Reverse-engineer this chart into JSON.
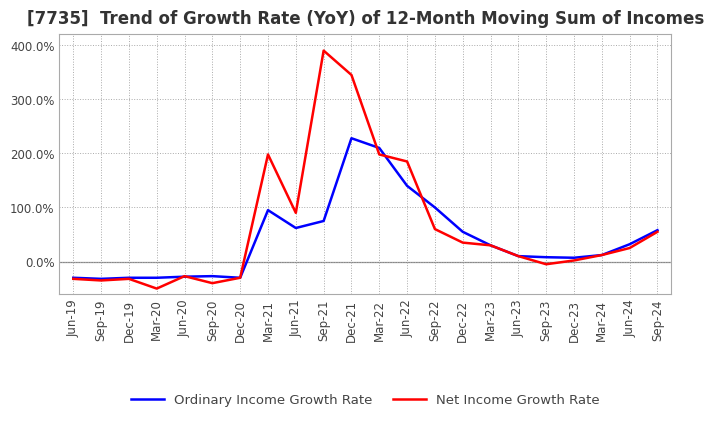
{
  "title": "[7735]  Trend of Growth Rate (YoY) of 12-Month Moving Sum of Incomes",
  "x_labels": [
    "Jun-19",
    "Sep-19",
    "Dec-19",
    "Mar-20",
    "Jun-20",
    "Sep-20",
    "Dec-20",
    "Mar-21",
    "Jun-21",
    "Sep-21",
    "Dec-21",
    "Mar-22",
    "Jun-22",
    "Sep-22",
    "Dec-22",
    "Mar-23",
    "Jun-23",
    "Sep-23",
    "Dec-23",
    "Mar-24",
    "Jun-24",
    "Sep-24"
  ],
  "ordinary_income": [
    -0.3,
    -0.32,
    -0.3,
    -0.3,
    -0.28,
    -0.27,
    -0.3,
    0.95,
    0.62,
    0.75,
    2.28,
    2.1,
    1.4,
    1.0,
    0.55,
    0.3,
    0.1,
    0.08,
    0.07,
    0.12,
    0.32,
    0.58
  ],
  "net_income": [
    -0.32,
    -0.35,
    -0.32,
    -0.5,
    -0.27,
    -0.4,
    -0.3,
    1.98,
    0.9,
    3.9,
    3.45,
    1.98,
    1.85,
    0.6,
    0.35,
    0.3,
    0.1,
    -0.05,
    0.02,
    0.12,
    0.25,
    0.55
  ],
  "ordinary_color": "#0000FF",
  "net_color": "#FF0000",
  "background_color": "#FFFFFF",
  "grid_color": "#AAAAAA",
  "ylim": [
    -0.6,
    4.2
  ],
  "yticks": [
    0.0,
    1.0,
    2.0,
    3.0,
    4.0
  ],
  "ytick_labels": [
    "0.0%",
    "100.0%",
    "200.0%",
    "300.0%",
    "400.0%"
  ],
  "legend_ordinary": "Ordinary Income Growth Rate",
  "legend_net": "Net Income Growth Rate",
  "title_fontsize": 12,
  "label_fontsize": 8.5,
  "legend_fontsize": 9.5,
  "line_width": 1.8
}
